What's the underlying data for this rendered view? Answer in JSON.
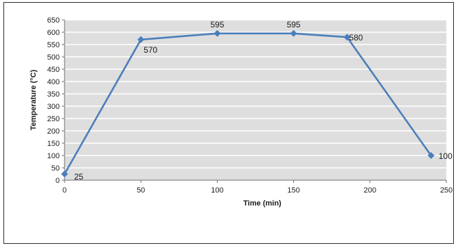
{
  "chart_data": {
    "type": "line",
    "title": "",
    "xlabel": "Time (min)",
    "ylabel": "Temperature (°C)",
    "xlim": [
      0,
      250
    ],
    "ylim": [
      0,
      650
    ],
    "xticks": [
      0,
      50,
      100,
      150,
      200,
      250
    ],
    "yticks": [
      0,
      50,
      100,
      150,
      200,
      250,
      300,
      350,
      400,
      450,
      500,
      550,
      600,
      650
    ],
    "grid": true,
    "legend": "none",
    "series": [
      {
        "color": "#4a7ebb",
        "points": [
          {
            "x": 0,
            "y": 25,
            "label": "25"
          },
          {
            "x": 50,
            "y": 570,
            "label": "570"
          },
          {
            "x": 100,
            "y": 595,
            "label": "595"
          },
          {
            "x": 150,
            "y": 595,
            "label": "595"
          },
          {
            "x": 185,
            "y": 580,
            "label": "580"
          },
          {
            "x": 240,
            "y": 100,
            "label": "100"
          }
        ]
      }
    ],
    "colors": {
      "plot_background": "#dedede",
      "gridline": "#ffffff",
      "axis": "#6e6e6e"
    }
  }
}
